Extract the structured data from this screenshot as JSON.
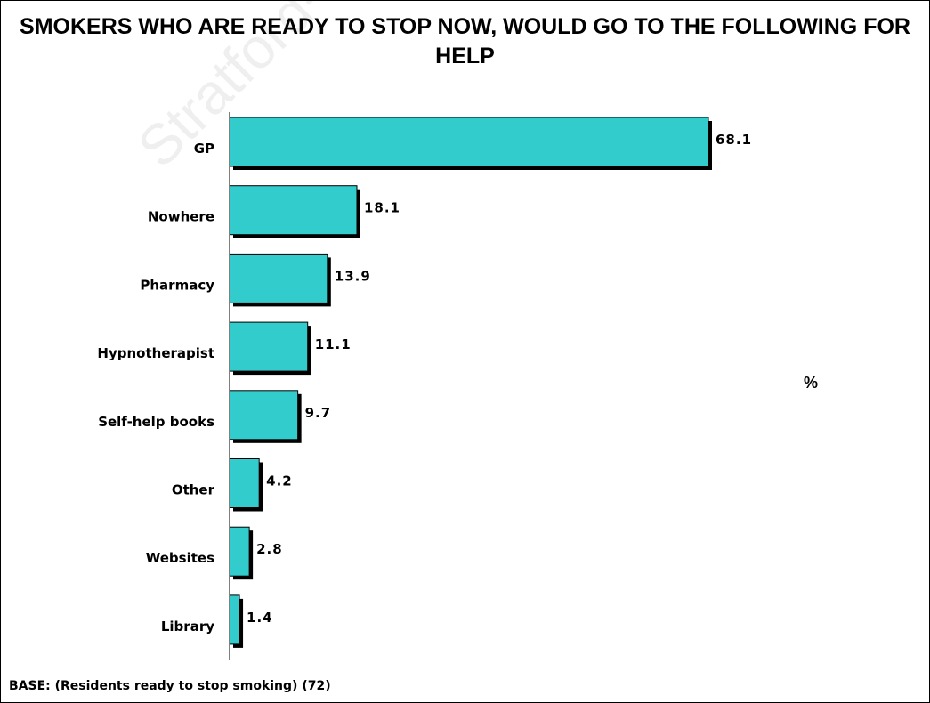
{
  "chart_data": {
    "type": "bar",
    "orientation": "horizontal",
    "title": "SMOKERS WHO ARE READY TO STOP NOW, WOULD GO TO THE FOLLOWING FOR HELP",
    "categories": [
      "GP",
      "Nowhere",
      "Pharmacy",
      "Hypnotherapist",
      "Self-help books",
      "Other",
      "Websites",
      "Library"
    ],
    "values": [
      68.1,
      18.1,
      13.9,
      11.1,
      9.7,
      4.2,
      2.8,
      1.4
    ],
    "value_labels": [
      "68.1",
      "18.1",
      "13.9",
      "11.1",
      "9.7",
      "4.2",
      "2.8",
      "1.4"
    ],
    "unit_label": "%",
    "xlim": [
      0,
      70
    ],
    "bar_color": "#33CCCC",
    "grid": false,
    "note": "BASE: (Residents ready to stop smoking) (72)"
  },
  "watermark": "Stratford-on-Avon"
}
